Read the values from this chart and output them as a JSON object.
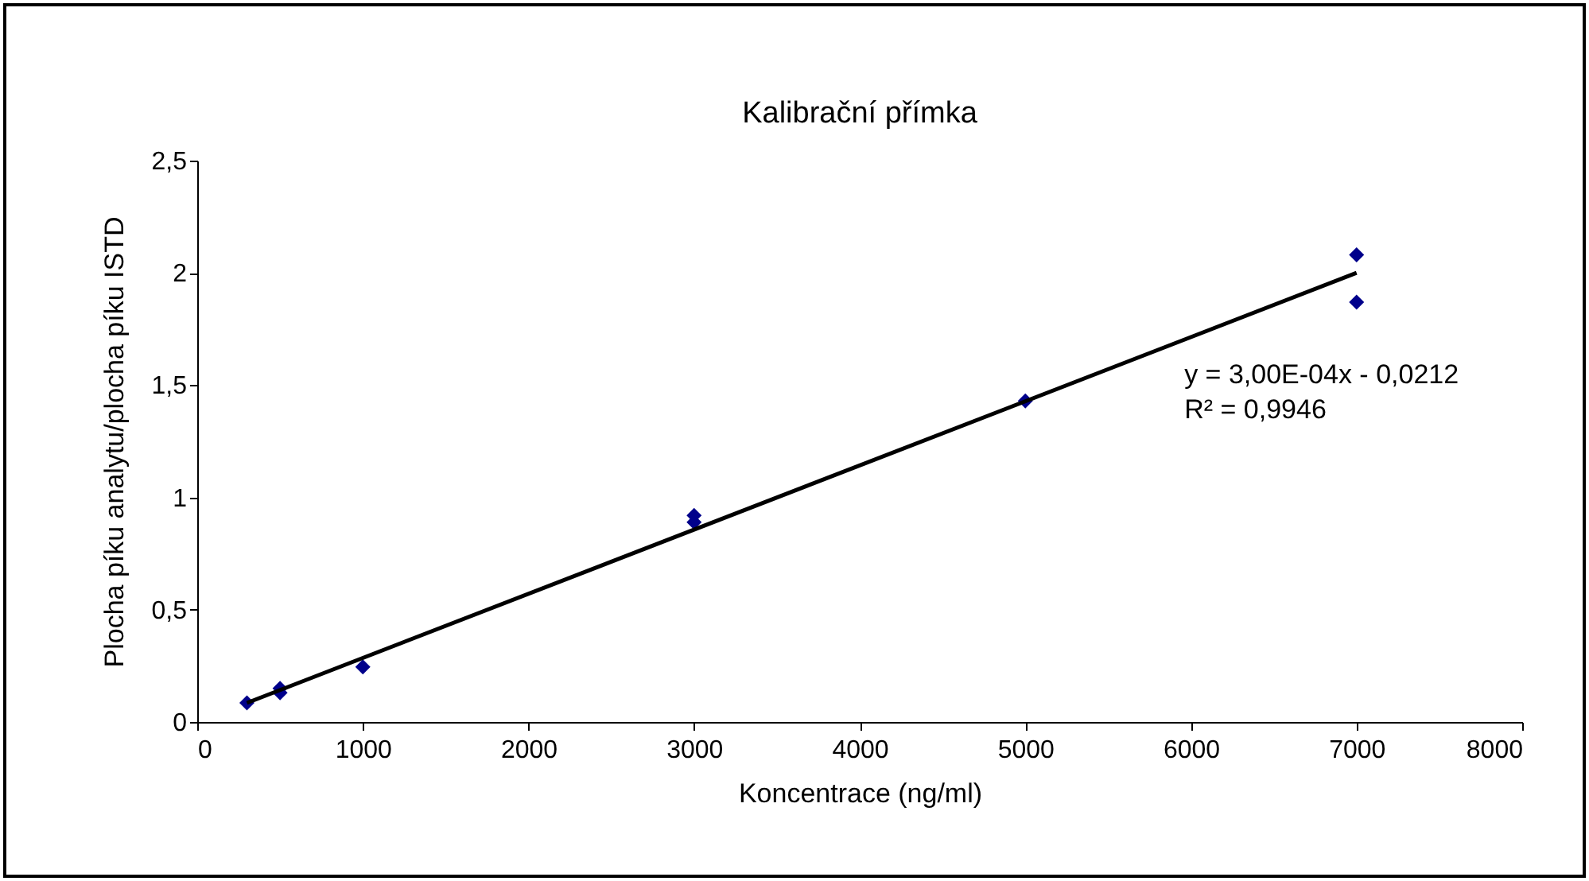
{
  "chart_data": {
    "type": "scatter",
    "title": "Kalibrační přímka",
    "xlabel": "Koncentrace (ng/ml)",
    "ylabel": "Plocha píku analytu/plocha píku ISTD",
    "series": [
      {
        "color": "#00008b",
        "x": [
          300,
          500,
          500,
          1000,
          3000,
          3000,
          5000,
          7000,
          7000
        ],
        "values": [
          0.085,
          0.13,
          0.15,
          0.245,
          0.89,
          0.92,
          1.43,
          2.08,
          1.87
        ]
      },
      {
        "type": "line",
        "marker": "none",
        "color": "#000000",
        "x": [
          300,
          7000
        ],
        "values": [
          0.085,
          2.0
        ]
      }
    ],
    "xlim": [
      0,
      8000
    ],
    "xticks": [
      0,
      1000,
      2000,
      3000,
      4000,
      5000,
      6000,
      7000,
      8000
    ],
    "ylim": [
      0,
      2.5
    ],
    "yticks": [
      0,
      {
        "value": 0.5,
        "label": "0,5"
      },
      1,
      {
        "value": 1.5,
        "label": "1,5"
      },
      2,
      {
        "value": 2.5,
        "label": "2,5"
      }
    ],
    "annotations": [
      "y = 3,00E-04x - 0,0212",
      "R² = 0,9946"
    ],
    "grid": false,
    "marker": "diamond"
  }
}
